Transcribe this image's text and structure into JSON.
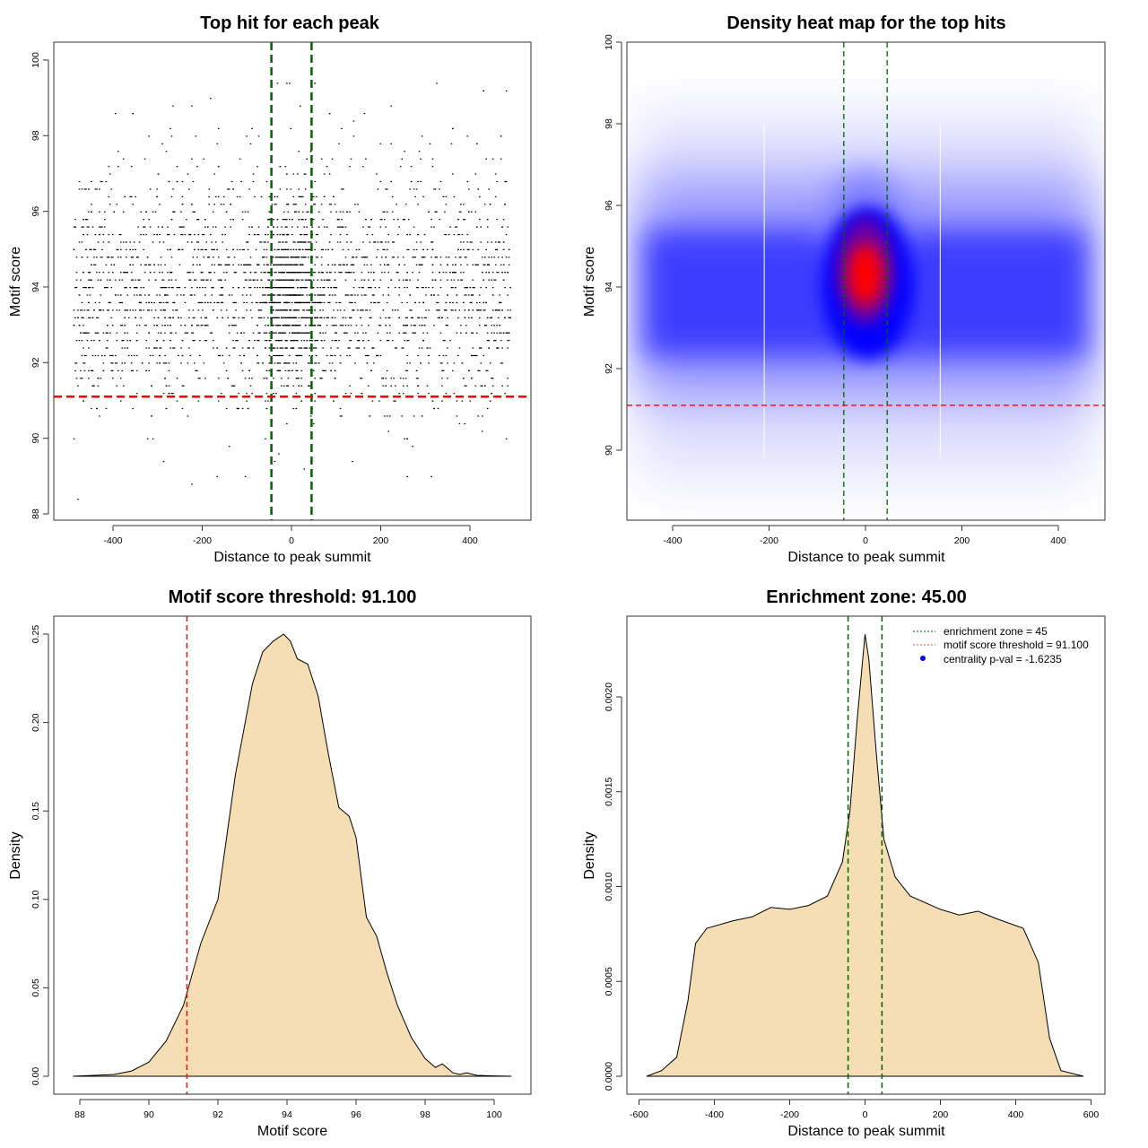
{
  "colors": {
    "threshold": "#ff0000",
    "zone": "#006400",
    "density_fill": "#f5deb3",
    "heat_low": "#ffffff",
    "heat_mid": "#0000ff",
    "heat_high": "#ff0000"
  },
  "chart_data": [
    {
      "type": "scatter",
      "title": "Top hit for each peak",
      "xlabel": "Distance to peak summit",
      "ylabel": "Motif score",
      "xlim": [
        -500,
        500
      ],
      "ylim": [
        88,
        100
      ],
      "xticks": [
        "-400",
        "-200",
        "0",
        "200",
        "400"
      ],
      "yticks": [
        "88",
        "90",
        "92",
        "94",
        "96",
        "98",
        "100"
      ],
      "vlines": [
        -45,
        45
      ],
      "hline": 91.1,
      "points_summary": {
        "x_range": [
          -490,
          490
        ],
        "y_range": [
          88.3,
          100
        ],
        "dense_center_x": 0,
        "dense_center_y": 94
      }
    },
    {
      "type": "heatmap",
      "title": "Density heat map for the top hits",
      "xlabel": "Distance to peak summit",
      "ylabel": "Motif score",
      "xlim": [
        -500,
        500
      ],
      "ylim": [
        88.2,
        100
      ],
      "xticks": [
        "-400",
        "-200",
        "0",
        "200",
        "400"
      ],
      "yticks": [
        "90",
        "92",
        "94",
        "96",
        "98",
        "100"
      ],
      "vlines": [
        -45,
        45
      ],
      "hline": 91.1,
      "peak": {
        "x": 0,
        "y": 94
      },
      "band_center_y": 93.7
    },
    {
      "type": "area",
      "title": "Motif score threshold: 91.100",
      "xlabel": "Motif score",
      "ylabel": "Density",
      "xlim": [
        87.8,
        100.5
      ],
      "ylim": [
        0,
        0.25
      ],
      "xticks": [
        "88",
        "90",
        "92",
        "94",
        "96",
        "98",
        "100"
      ],
      "yticks": [
        "0.00",
        "0.05",
        "0.10",
        "0.15",
        "0.20",
        "0.25"
      ],
      "vline": 91.1,
      "x": [
        87.8,
        89,
        89.5,
        90,
        90.5,
        91,
        91.5,
        92,
        92.5,
        93,
        93.3,
        93.6,
        93.9,
        94.1,
        94.3,
        94.6,
        94.9,
        95.2,
        95.5,
        95.8,
        96.0,
        96.3,
        96.6,
        96.9,
        97.2,
        97.6,
        98,
        98.3,
        98.5,
        98.8,
        99,
        99.2,
        99.5,
        100,
        100.5
      ],
      "y": [
        0,
        0.001,
        0.003,
        0.008,
        0.02,
        0.04,
        0.075,
        0.1,
        0.17,
        0.222,
        0.24,
        0.246,
        0.25,
        0.246,
        0.236,
        0.233,
        0.215,
        0.182,
        0.152,
        0.147,
        0.135,
        0.09,
        0.079,
        0.058,
        0.04,
        0.022,
        0.01,
        0.005,
        0.007,
        0.002,
        0.001,
        0.002,
        0.0005,
        0.0002,
        0
      ]
    },
    {
      "type": "area",
      "title": "Enrichment zone: 45.00",
      "xlabel": "Distance to peak summit",
      "ylabel": "Density",
      "xlim": [
        -600,
        600
      ],
      "ylim": [
        0,
        0.0023
      ],
      "xticks": [
        "-600",
        "-400",
        "-200",
        "0",
        "200",
        "400",
        "600"
      ],
      "yticks": [
        "0.0000",
        "0.0005",
        "0.0010",
        "0.0015",
        "0.0020"
      ],
      "vlines": [
        -45,
        45
      ],
      "legend": {
        "position": "top-right",
        "entries": [
          "enrichment zone = 45",
          "motif score threshold = 91.100",
          "centrality p-val = -1.6235"
        ]
      },
      "x": [
        -580,
        -540,
        -500,
        -470,
        -450,
        -420,
        -350,
        -300,
        -250,
        -200,
        -150,
        -100,
        -60,
        -40,
        -20,
        0,
        10,
        30,
        50,
        80,
        120,
        200,
        250,
        300,
        350,
        420,
        460,
        490,
        520,
        580
      ],
      "y": [
        0,
        3e-05,
        0.0001,
        0.0004,
        0.0007,
        0.00078,
        0.00082,
        0.00084,
        0.00089,
        0.00088,
        0.0009,
        0.00095,
        0.00113,
        0.0014,
        0.0019,
        0.00233,
        0.0022,
        0.0017,
        0.00125,
        0.00105,
        0.00095,
        0.00088,
        0.00085,
        0.00087,
        0.00083,
        0.00078,
        0.0006,
        0.0002,
        3e-05,
        0
      ]
    }
  ]
}
